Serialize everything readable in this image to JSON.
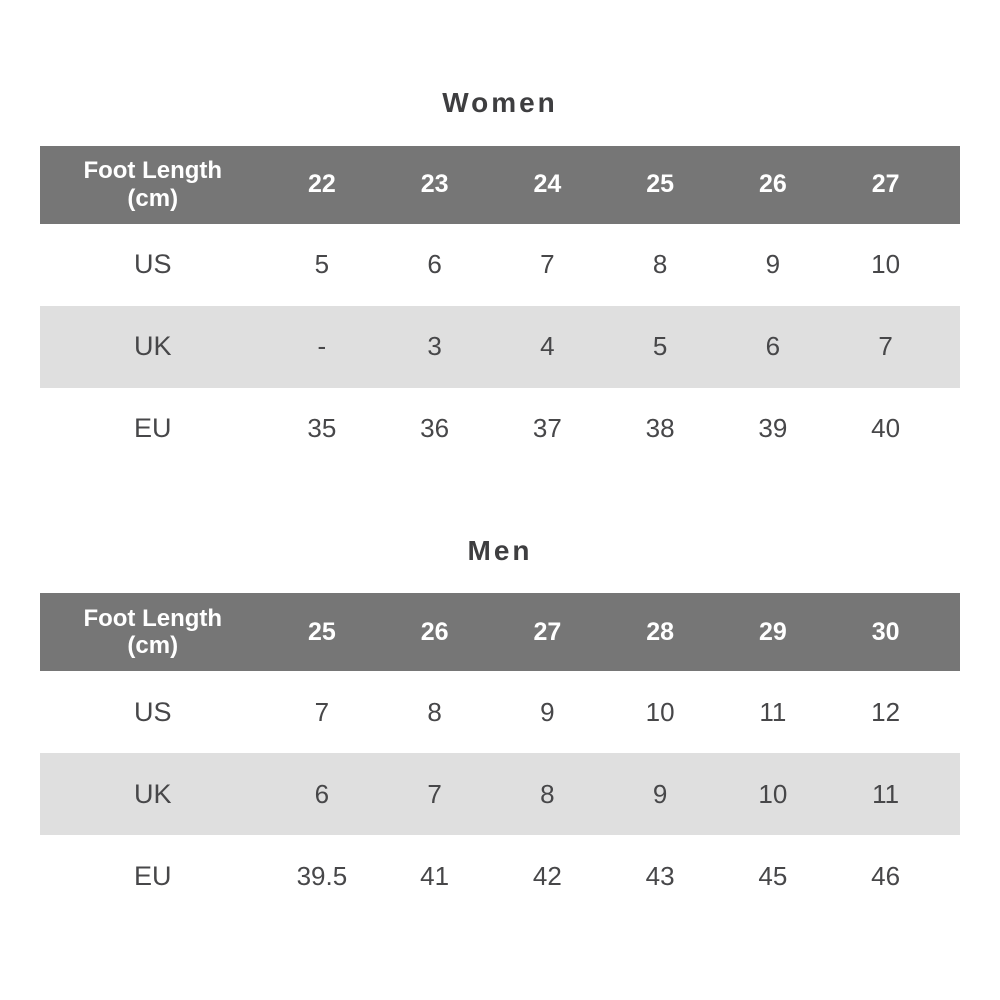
{
  "colors": {
    "header_bg": "#767676",
    "header_text": "#ffffff",
    "alt_row_bg": "#dfdfdf",
    "body_text": "#474749",
    "title_text": "#3e3e40",
    "page_bg": "#ffffff"
  },
  "tables": [
    {
      "title": "Women",
      "header": {
        "label_line1": "Foot Length",
        "label_line2": "(cm)",
        "values": [
          "22",
          "23",
          "24",
          "25",
          "26",
          "27"
        ]
      },
      "rows": [
        {
          "label": "US",
          "values": [
            "5",
            "6",
            "7",
            "8",
            "9",
            "10"
          ]
        },
        {
          "label": "UK",
          "values": [
            "-",
            "3",
            "4",
            "5",
            "6",
            "7"
          ]
        },
        {
          "label": "EU",
          "values": [
            "35",
            "36",
            "37",
            "38",
            "39",
            "40"
          ]
        }
      ]
    },
    {
      "title": "Men",
      "header": {
        "label_line1": "Foot Length",
        "label_line2": "(cm)",
        "values": [
          "25",
          "26",
          "27",
          "28",
          "29",
          "30"
        ]
      },
      "rows": [
        {
          "label": "US",
          "values": [
            "7",
            "8",
            "9",
            "10",
            "11",
            "12"
          ]
        },
        {
          "label": "UK",
          "values": [
            "6",
            "7",
            "8",
            "9",
            "10",
            "11"
          ]
        },
        {
          "label": "EU",
          "values": [
            "39.5",
            "41",
            "42",
            "43",
            "45",
            "46"
          ]
        }
      ]
    }
  ],
  "chart_data": [
    {
      "type": "table",
      "title": "Women",
      "columns": [
        "Foot Length (cm)",
        "22",
        "23",
        "24",
        "25",
        "26",
        "27"
      ],
      "rows": [
        [
          "US",
          "5",
          "6",
          "7",
          "8",
          "9",
          "10"
        ],
        [
          "UK",
          "-",
          "3",
          "4",
          "5",
          "6",
          "7"
        ],
        [
          "EU",
          "35",
          "36",
          "37",
          "38",
          "39",
          "40"
        ]
      ]
    },
    {
      "type": "table",
      "title": "Men",
      "columns": [
        "Foot Length (cm)",
        "25",
        "26",
        "27",
        "28",
        "29",
        "30"
      ],
      "rows": [
        [
          "US",
          "7",
          "8",
          "9",
          "10",
          "11",
          "12"
        ],
        [
          "UK",
          "6",
          "7",
          "8",
          "9",
          "10",
          "11"
        ],
        [
          "EU",
          "39.5",
          "41",
          "42",
          "43",
          "45",
          "46"
        ]
      ]
    }
  ]
}
